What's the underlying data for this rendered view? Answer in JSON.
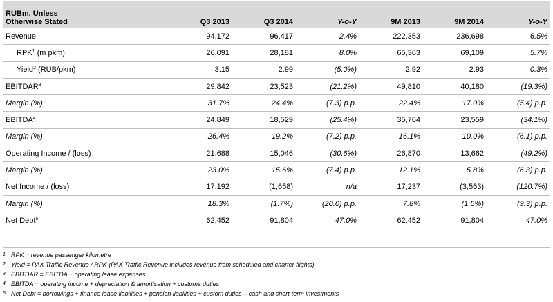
{
  "header": {
    "label": "RUBm, Unless Otherwise Stated",
    "columns": [
      "Q3 2013",
      "Q3 2014",
      "Y-o-Y",
      "9M 2013",
      "9M 2014",
      "Y-o-Y"
    ]
  },
  "rows": [
    {
      "label": "Revenue",
      "sup": "",
      "values": [
        "94,172",
        "96,417",
        "2.4%",
        "222,353",
        "236,698",
        "6.5%"
      ]
    },
    {
      "label": "RPK",
      "sup": "1",
      "suffix": " (m pkm)",
      "values": [
        "26,091",
        "28,181",
        "8.0%",
        "65,363",
        "69,109",
        "5.7%"
      ]
    },
    {
      "label": "Yield",
      "sup": "2",
      "suffix": " (RUB/pkm)",
      "values": [
        "3.15",
        "2.99",
        "(5.0%)",
        "2.92",
        "2.93",
        "0.3%"
      ]
    },
    {
      "label": "EBITDAR",
      "sup": "3",
      "values": [
        "29,842",
        "23,523",
        "(21.2%)",
        "49,810",
        "40,180",
        "(19.3%)"
      ]
    },
    {
      "label": "Margin (%)",
      "sup": "",
      "values": [
        "31.7%",
        "24.4%",
        "(7.3) p.p.",
        "22.4%",
        "17.0%",
        "(5.4) p.p."
      ]
    },
    {
      "label": "EBITDA",
      "sup": "4",
      "values": [
        "24,849",
        "18,529",
        "(25.4%)",
        "35,764",
        "23,559",
        "(34.1%)"
      ]
    },
    {
      "label": "Margin (%)",
      "sup": "",
      "values": [
        "26.4%",
        "19.2%",
        "(7.2) p.p.",
        "16.1%",
        "10.0%",
        "(6.1) p.p."
      ]
    },
    {
      "label": "Operating Income / (loss)",
      "sup": "",
      "values": [
        "21,688",
        "15,046",
        "(30.6%)",
        "26,870",
        "13,662",
        "(49.2%)"
      ]
    },
    {
      "label": "Margin (%)",
      "sup": "",
      "values": [
        "23.0%",
        "15.6%",
        "(7.4) p.p.",
        "12.1%",
        "5.8%",
        "(6.3) p.p."
      ]
    },
    {
      "label": "Net Income / (loss)",
      "sup": "",
      "values": [
        "17,192",
        "(1,658)",
        "n/a",
        "17,237",
        "(3,563)",
        "(120.7%)"
      ]
    },
    {
      "label": "Margin (%)",
      "sup": "",
      "values": [
        "18.3%",
        "(1.7%)",
        "(20.0) p.p.",
        "7.8%",
        "(1.5%)",
        "(9.3) p.p."
      ]
    },
    {
      "label": "Net Debt",
      "sup": "5",
      "values": [
        "62,452",
        "91,804",
        "47.0%",
        "62,452",
        "91,804",
        "47.0%"
      ]
    }
  ],
  "footnotes": [
    {
      "num": "1",
      "text": "RPK = revenue passenger kilometre"
    },
    {
      "num": "2",
      "text": "Yield = PAX Traffic Revenue / RPK (PAX Traffic Revenue includes revenue from scheduled and charter flights)"
    },
    {
      "num": "3",
      "text": "EBITDAR = EBITDA + operating lease expenses"
    },
    {
      "num": "4",
      "text": "EBITDA = operating income + depreciation & amortisation + customs duties"
    },
    {
      "num": "5",
      "text": "Net Debt = borrowings + finance lease liabilities + pension liabilities + custom duties – cash and short-term investments"
    }
  ]
}
